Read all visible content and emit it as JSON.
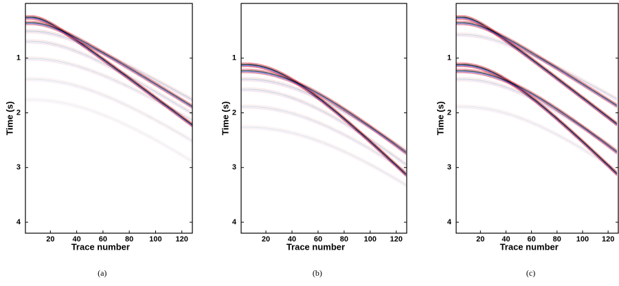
{
  "chart_data": [
    {
      "type": "image",
      "caption": "(a)",
      "xlabel": "Trace number",
      "ylabel": "Time (s)",
      "xlim": [
        1,
        128
      ],
      "ylim": [
        0,
        4.2
      ],
      "y_inverted": true,
      "xticks": [
        20,
        40,
        60,
        80,
        100,
        120
      ],
      "yticks": [
        1,
        2,
        3,
        4
      ]
    },
    {
      "type": "image",
      "caption": "(b)",
      "xlabel": "Trace number",
      "ylabel": "Time (s)",
      "xlim": [
        1,
        128
      ],
      "ylim": [
        0,
        4.2
      ],
      "y_inverted": true,
      "xticks": [
        20,
        40,
        60,
        80,
        100,
        120
      ],
      "yticks": [
        1,
        2,
        3,
        4
      ]
    },
    {
      "type": "image",
      "caption": "(c)",
      "xlabel": "Trace number",
      "ylabel": "Time (s)",
      "xlim": [
        1,
        128
      ],
      "ylim": [
        0,
        4.2
      ],
      "y_inverted": true,
      "xticks": [
        20,
        40,
        60,
        80,
        100,
        120
      ],
      "yticks": [
        1,
        2,
        3,
        4
      ]
    }
  ]
}
